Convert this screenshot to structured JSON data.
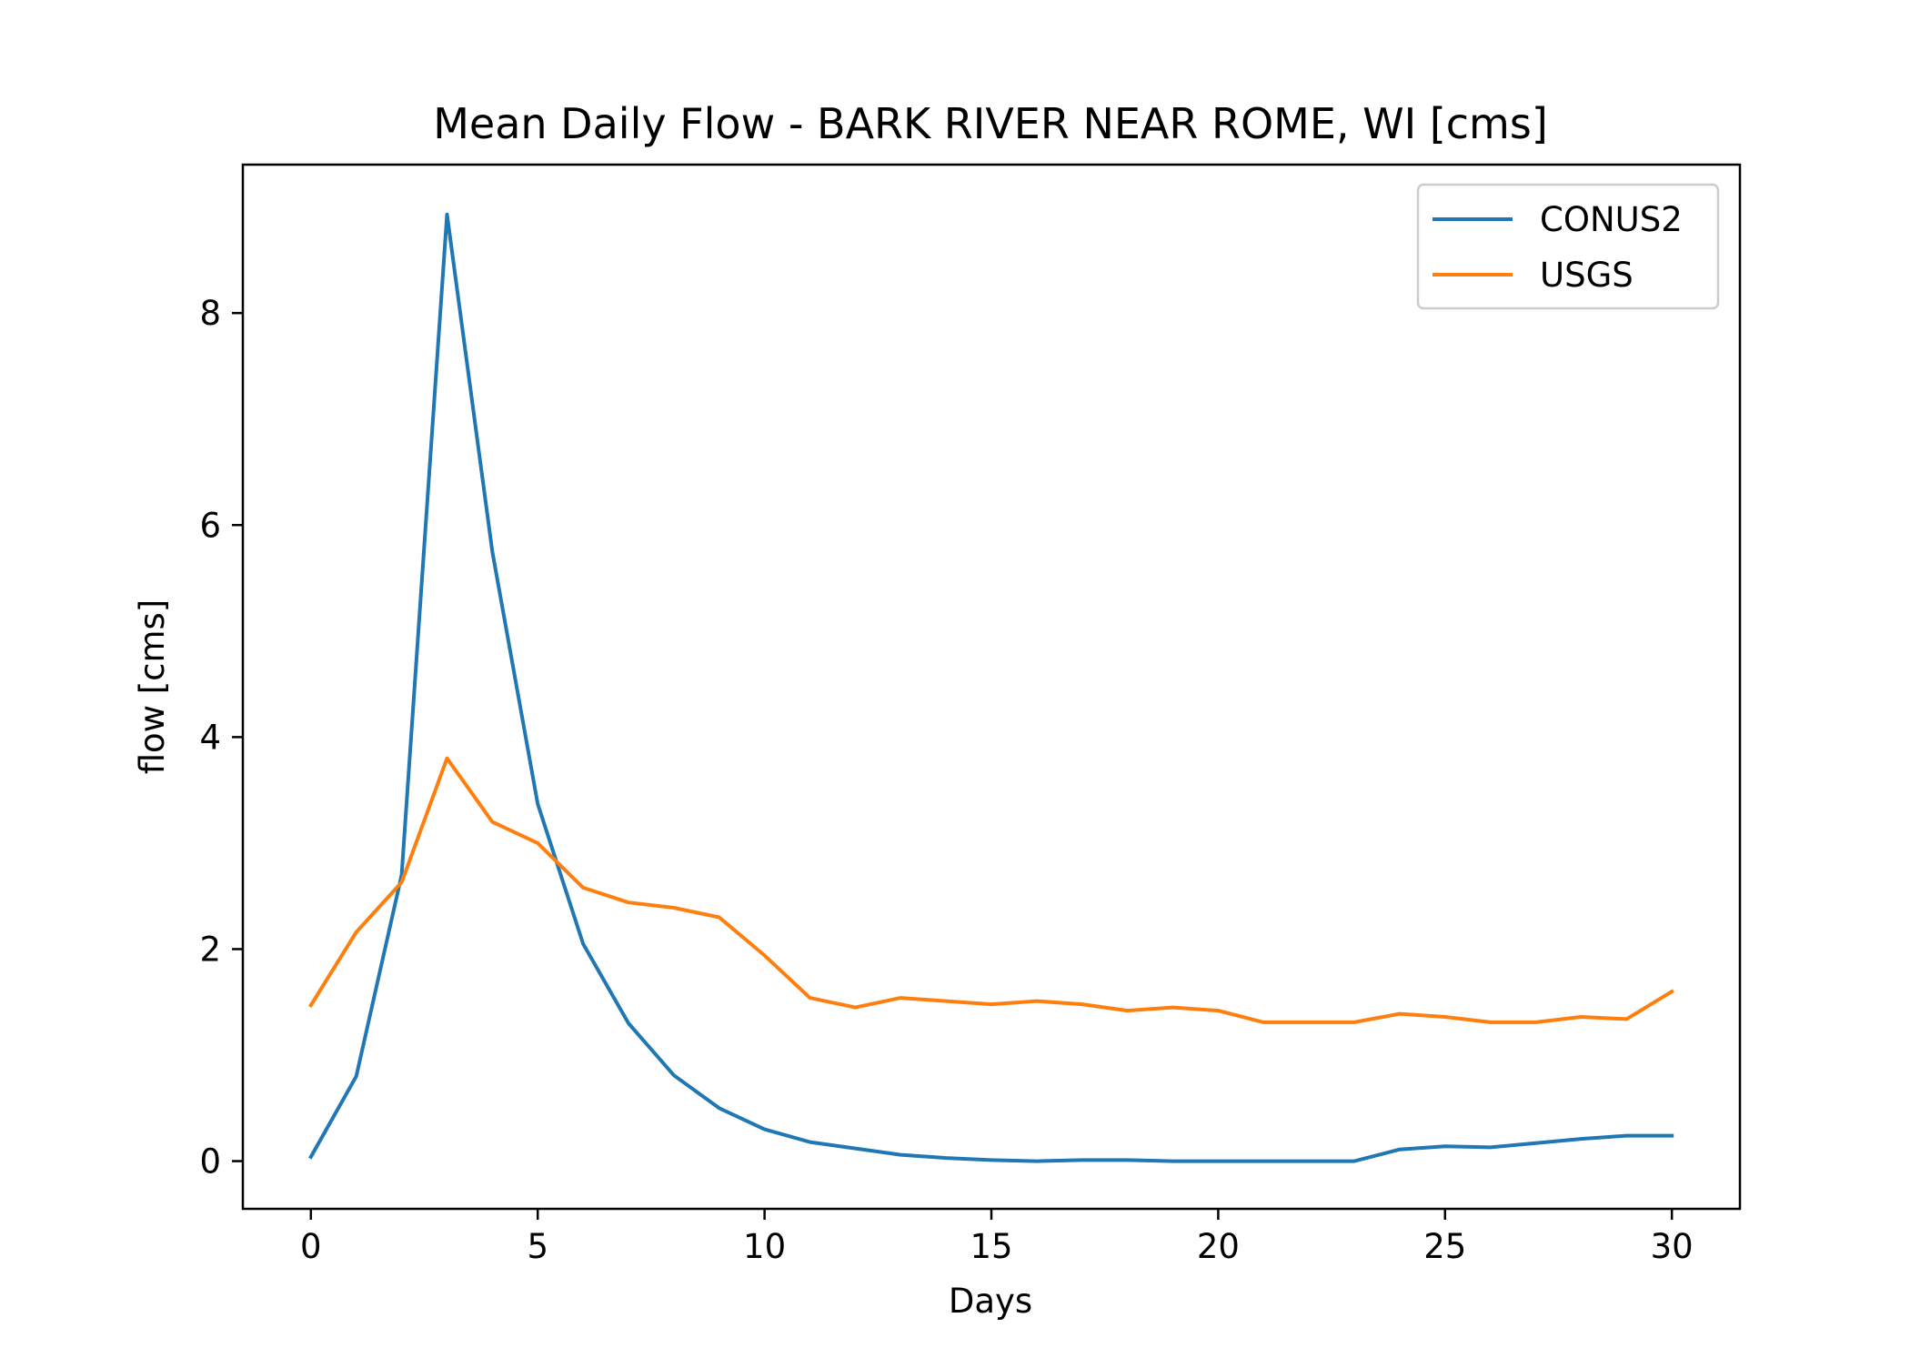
{
  "chart_data": {
    "type": "line",
    "title": "Mean Daily Flow - BARK RIVER NEAR ROME, WI [cms]",
    "xlabel": "Days",
    "ylabel": "flow [cms]",
    "xlim": [
      -1.5,
      31.5
    ],
    "ylim": [
      -0.45,
      9.4
    ],
    "xticks": [
      0,
      5,
      10,
      15,
      20,
      25,
      30
    ],
    "yticks": [
      0,
      2,
      4,
      6,
      8
    ],
    "grid": false,
    "legend": "top-right",
    "x": [
      0,
      1,
      2,
      3,
      4,
      5,
      6,
      7,
      8,
      9,
      10,
      11,
      12,
      13,
      14,
      15,
      16,
      17,
      18,
      19,
      20,
      21,
      22,
      23,
      24,
      25,
      26,
      27,
      28,
      29,
      30
    ],
    "series": [
      {
        "name": "CONUS2",
        "color": "#1f77b4",
        "values": [
          0.04,
          0.8,
          2.7,
          8.93,
          5.75,
          3.37,
          2.05,
          1.3,
          0.81,
          0.5,
          0.3,
          0.18,
          0.12,
          0.06,
          0.03,
          0.01,
          0.0,
          0.01,
          0.01,
          0.0,
          0.0,
          0.0,
          0.0,
          0.0,
          0.11,
          0.14,
          0.13,
          0.17,
          0.21,
          0.24,
          0.24
        ]
      },
      {
        "name": "USGS",
        "color": "#ff7f0e",
        "values": [
          1.47,
          2.16,
          2.63,
          3.8,
          3.2,
          3.0,
          2.58,
          2.44,
          2.39,
          2.3,
          1.94,
          1.54,
          1.45,
          1.54,
          1.51,
          1.48,
          1.51,
          1.48,
          1.42,
          1.45,
          1.42,
          1.31,
          1.31,
          1.31,
          1.39,
          1.36,
          1.31,
          1.31,
          1.36,
          1.34,
          1.6
        ]
      }
    ]
  }
}
